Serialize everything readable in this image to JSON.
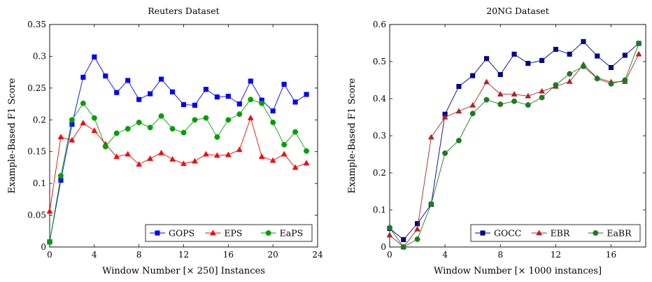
{
  "chart_data": [
    {
      "type": "line",
      "title": "Reuters Dataset",
      "xlabel": "Window Number [× 250] Instances",
      "ylabel": "Example-Based F1 Score",
      "xlim": [
        0,
        24
      ],
      "ylim": [
        0,
        0.35
      ],
      "xticks": [
        0,
        4,
        8,
        12,
        16,
        20,
        24
      ],
      "xtick_labels": [
        "0",
        "4",
        "8",
        "12",
        "16",
        "20",
        "24"
      ],
      "yticks": [
        0,
        0.05,
        0.1,
        0.15,
        0.2,
        0.25,
        0.3,
        0.35
      ],
      "ytick_labels": [
        "0",
        "0.05",
        "0.1",
        "0.15",
        "0.2",
        "0.25",
        "0.3",
        "0.35"
      ],
      "grid": false,
      "legend_position": "bottom-right",
      "legend_layout": "horizontal",
      "x": [
        0,
        1,
        2,
        3,
        4,
        5,
        6,
        7,
        8,
        9,
        10,
        11,
        12,
        13,
        14,
        15,
        16,
        17,
        18,
        19,
        20,
        21,
        22,
        23
      ],
      "series": [
        {
          "name": "GOPS",
          "color": "#0000ff",
          "marker": "square",
          "values": [
            0.008,
            0.105,
            0.193,
            0.267,
            0.299,
            0.269,
            0.243,
            0.262,
            0.232,
            0.241,
            0.264,
            0.244,
            0.224,
            0.223,
            0.248,
            0.236,
            0.237,
            0.225,
            0.261,
            0.231,
            0.214,
            0.256,
            0.228,
            0.24
          ]
        },
        {
          "name": "EPS",
          "color": "#ff0000",
          "marker": "triangle",
          "values": [
            0.056,
            0.173,
            0.168,
            0.195,
            0.183,
            0.162,
            0.142,
            0.146,
            0.13,
            0.139,
            0.148,
            0.138,
            0.131,
            0.135,
            0.146,
            0.144,
            0.145,
            0.153,
            0.203,
            0.142,
            0.136,
            0.146,
            0.125,
            0.132
          ]
        },
        {
          "name": "EaPS",
          "color": "#00a000",
          "marker": "circle",
          "values": [
            0.008,
            0.112,
            0.2,
            0.226,
            0.203,
            0.158,
            0.179,
            0.186,
            0.196,
            0.188,
            0.206,
            0.186,
            0.18,
            0.2,
            0.203,
            0.173,
            0.2,
            0.209,
            0.232,
            0.226,
            0.196,
            0.161,
            0.181,
            0.151
          ]
        }
      ]
    },
    {
      "type": "line",
      "title": "20NG Dataset",
      "xlabel": "Window Number [× 1000 instances]",
      "ylabel": "Example-Based F1 Score",
      "xlim": [
        0,
        18.5
      ],
      "ylim": [
        0,
        0.6
      ],
      "xticks": [
        0,
        4,
        8,
        12,
        16
      ],
      "xtick_labels": [
        "0",
        "4",
        "8",
        "12",
        "16"
      ],
      "yticks": [
        0,
        0.1,
        0.2,
        0.3,
        0.4,
        0.5,
        0.6
      ],
      "ytick_labels": [
        "0",
        "0.1",
        "0.2",
        "0.3",
        "0.4",
        "0.5",
        "0.6"
      ],
      "grid": false,
      "legend_position": "bottom-right",
      "legend_layout": "horizontal",
      "x": [
        0,
        1,
        2,
        3,
        4,
        5,
        6,
        7,
        8,
        9,
        10,
        11,
        12,
        13,
        14,
        15,
        16,
        17,
        18
      ],
      "series": [
        {
          "name": "GOCC",
          "color": "#00008b",
          "marker": "square",
          "values": [
            0.05,
            0.02,
            0.063,
            0.115,
            0.358,
            0.433,
            0.462,
            0.508,
            0.465,
            0.52,
            0.495,
            0.503,
            0.533,
            0.52,
            0.554,
            0.515,
            0.484,
            0.517,
            0.549
          ]
        },
        {
          "name": "EBR",
          "color": "#b22222",
          "marker": "triangle",
          "values": [
            0.032,
            0.0,
            0.048,
            0.296,
            0.35,
            0.366,
            0.382,
            0.445,
            0.412,
            0.412,
            0.407,
            0.42,
            0.433,
            0.446,
            0.492,
            0.456,
            0.445,
            0.446,
            0.52
          ]
        },
        {
          "name": "EaBR",
          "color": "#1e7a1e",
          "marker": "circle",
          "values": [
            0.052,
            0.0,
            0.021,
            0.116,
            0.253,
            0.287,
            0.36,
            0.397,
            0.385,
            0.393,
            0.383,
            0.403,
            0.437,
            0.467,
            0.487,
            0.454,
            0.44,
            0.45,
            0.549
          ]
        }
      ]
    }
  ]
}
